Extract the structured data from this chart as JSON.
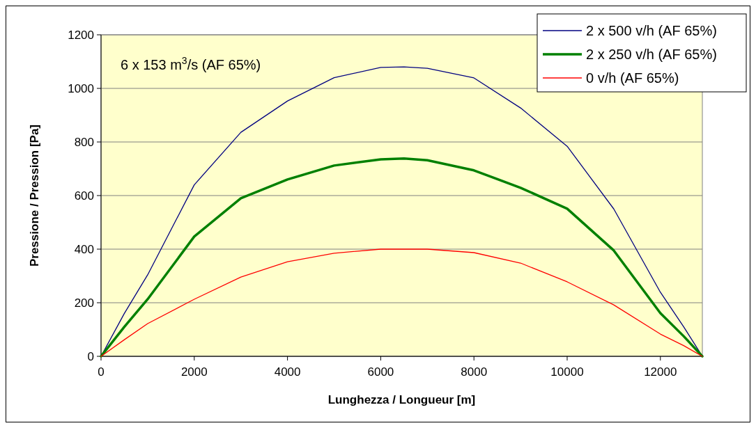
{
  "chart_data": {
    "type": "line",
    "xlabel": "Lunghezza / Longueur [m]",
    "ylabel": "Pressione / Pression [Pa]",
    "annotations": [
      "6 x 153 m$^{3}$/s (AF 65%)"
    ],
    "x": [
      0,
      500,
      1000,
      2000,
      3000,
      4000,
      5000,
      6000,
      6500,
      7000,
      8000,
      9000,
      10000,
      11000,
      12000,
      12500,
      12900
    ],
    "series": [
      {
        "name": "2 x 500 v/h (AF 65%)",
        "color": "#000080",
        "values": [
          0,
          160,
          304,
          640,
          836,
          953,
          1040,
          1078,
          1080,
          1075,
          1039,
          927,
          784,
          550,
          239,
          110,
          0
        ]
      },
      {
        "name": "2 x 250 v/h (AF 65%)",
        "color": "#008000",
        "values": [
          0,
          110,
          213,
          447,
          590,
          660,
          712,
          735,
          738,
          732,
          694,
          629,
          551,
          395,
          161,
          75,
          0
        ]
      },
      {
        "name": "0 v/h (AF 65%)",
        "color": "#ff0000",
        "values": [
          0,
          62,
          122,
          213,
          296,
          353,
          385,
          400,
          400,
          400,
          387,
          348,
          278,
          192,
          83,
          40,
          0
        ]
      }
    ],
    "xlim": [
      0,
      12900
    ],
    "xticks": [
      0,
      2000,
      4000,
      6000,
      8000,
      10000,
      12000
    ],
    "ylim": [
      0,
      1200
    ],
    "yticks": [
      0,
      200,
      400,
      600,
      800,
      1000,
      1200
    ],
    "grid": "y",
    "legend": "top right",
    "marker": "none",
    "line_style": "solid"
  }
}
